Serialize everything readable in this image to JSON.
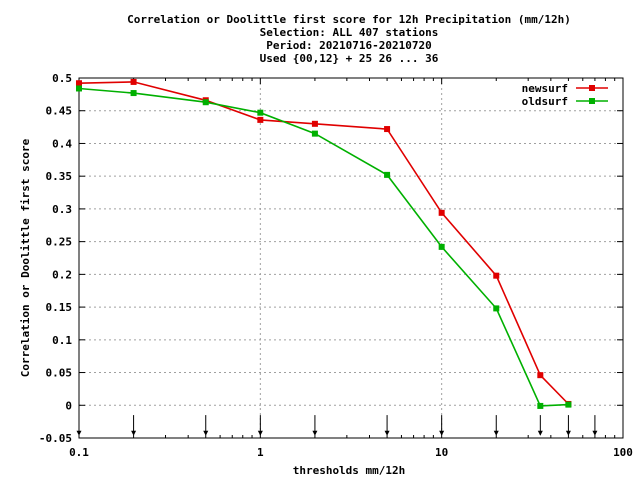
{
  "chart_data": {
    "type": "line",
    "title_lines": [
      "Correlation or Doolittle first score  for 12h Precipitation (mm/12h)",
      "Selection: ALL    407 stations",
      "Period: 20210716-20210720",
      "Used {00,12} + 25 26 ... 36"
    ],
    "xlabel": "thresholds mm/12h",
    "ylabel": "Correlation or Doolittle first score",
    "xscale": "log",
    "xlim": [
      0.1,
      100
    ],
    "ylim": [
      -0.05,
      0.5
    ],
    "xticks": [
      {
        "value": 0.1,
        "label": "0.1"
      },
      {
        "value": 1,
        "label": "1"
      },
      {
        "value": 10,
        "label": "10"
      },
      {
        "value": 100,
        "label": "100"
      }
    ],
    "yticks": [
      {
        "value": -0.05,
        "label": "-0.05"
      },
      {
        "value": 0,
        "label": "0"
      },
      {
        "value": 0.05,
        "label": "0.05"
      },
      {
        "value": 0.1,
        "label": "0.1"
      },
      {
        "value": 0.15,
        "label": "0.15"
      },
      {
        "value": 0.2,
        "label": "0.2"
      },
      {
        "value": 0.25,
        "label": "0.25"
      },
      {
        "value": 0.3,
        "label": "0.3"
      },
      {
        "value": 0.35,
        "label": "0.35"
      },
      {
        "value": 0.4,
        "label": "0.4"
      },
      {
        "value": 0.45,
        "label": "0.45"
      },
      {
        "value": 0.5,
        "label": "0.5"
      }
    ],
    "grid": true,
    "legend_position": "top-right",
    "threshold_markers": [
      0.1,
      0.2,
      0.5,
      1,
      2,
      5,
      10,
      20,
      35,
      50,
      70
    ],
    "series": [
      {
        "name": "newsurf",
        "color": "#e00000",
        "x": [
          0.1,
          0.2,
          0.5,
          1,
          2,
          5,
          10,
          20,
          35,
          50
        ],
        "y": [
          0.492,
          0.494,
          0.466,
          0.436,
          0.43,
          0.422,
          0.294,
          0.198,
          0.046,
          0.002
        ]
      },
      {
        "name": "oldsurf",
        "color": "#00b000",
        "x": [
          0.1,
          0.2,
          0.5,
          1,
          2,
          5,
          10,
          20,
          35,
          50
        ],
        "y": [
          0.484,
          0.477,
          0.463,
          0.447,
          0.415,
          0.352,
          0.242,
          0.148,
          -0.001,
          0.001
        ]
      }
    ]
  }
}
